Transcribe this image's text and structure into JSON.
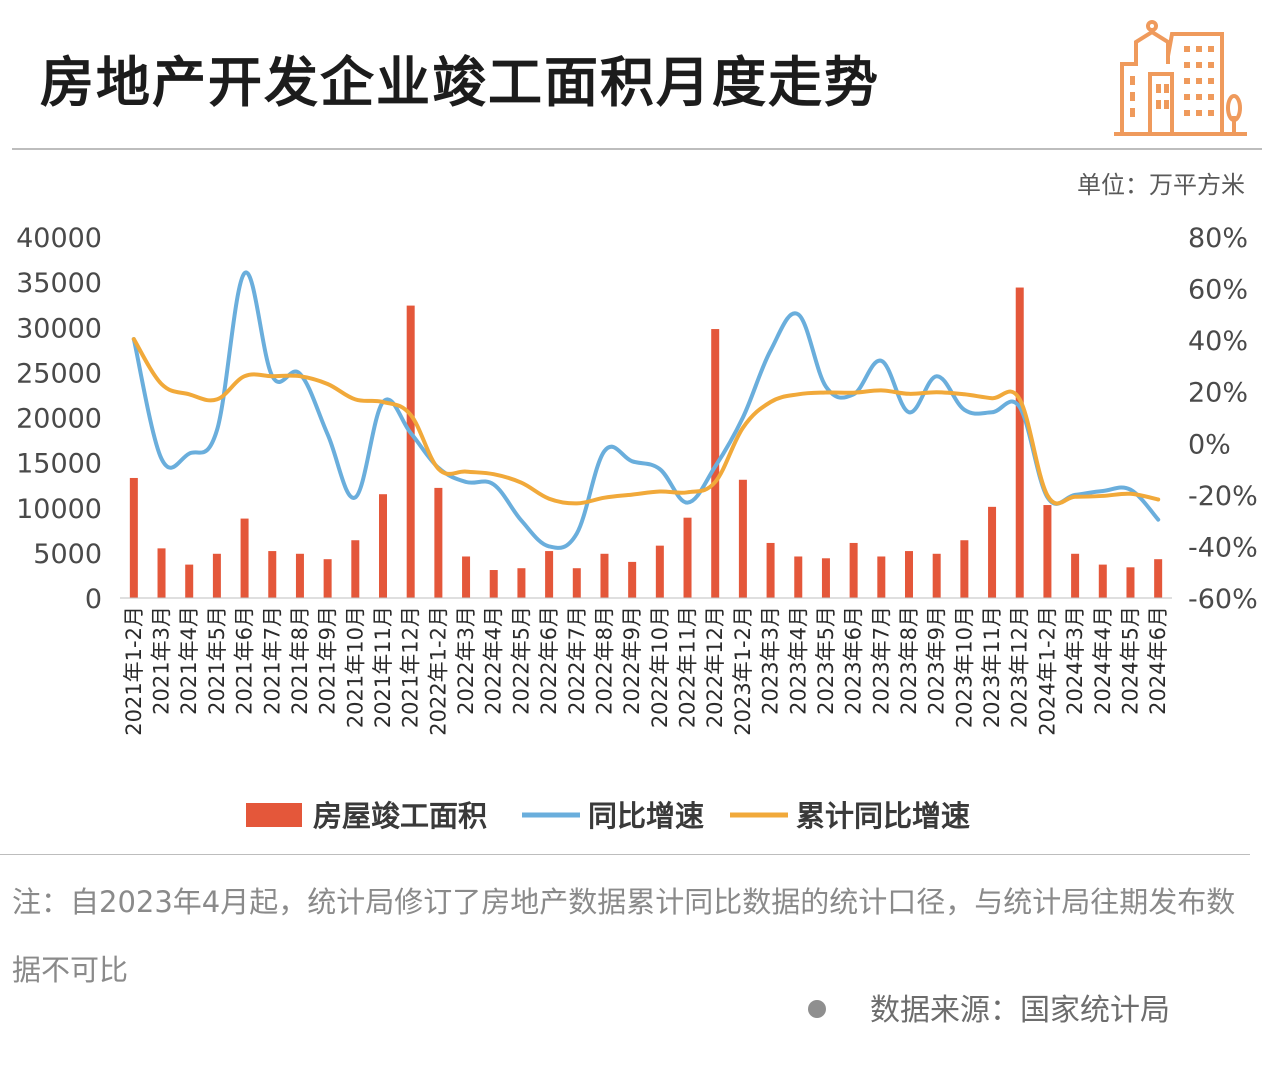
{
  "title": "房地产开发企业竣工面积月度走势",
  "unit": "单位：万平方米",
  "note": "注：自2023年4月起，统计局修订了房地产数据累计同比数据的统计口径，与统计局往期发布数据不可比",
  "source": "数据来源：国家统计局",
  "logo_icon": "buildings-icon",
  "colors": {
    "bar": "#e4573a",
    "yoy": "#6aaedc",
    "cum": "#f1a93a",
    "logo": "#ef9a5c"
  },
  "chart_data": {
    "type": "bar",
    "categories": [
      "2021年1-2月",
      "2021年3月",
      "2021年4月",
      "2021年5月",
      "2021年6月",
      "2021年7月",
      "2021年8月",
      "2021年9月",
      "2021年10月",
      "2021年11月",
      "2021年12月",
      "2022年1-2月",
      "2022年3月",
      "2022年4月",
      "2022年5月",
      "2022年6月",
      "2022年7月",
      "2022年8月",
      "2022年9月",
      "2022年10月",
      "2022年11月",
      "2022年12月",
      "2023年1-2月",
      "2023年3月",
      "2023年4月",
      "2023年5月",
      "2023年6月",
      "2023年7月",
      "2023年8月",
      "2023年9月",
      "2023年10月",
      "2023年11月",
      "2023年12月",
      "2024年1-2月",
      "2024年3月",
      "2024年4月",
      "2024年5月",
      "2024年6月"
    ],
    "y_left": {
      "ticks": [
        "0",
        "5000",
        "10000",
        "15000",
        "20000",
        "25000",
        "30000",
        "35000",
        "40000"
      ],
      "min": 0,
      "max": 40000
    },
    "y_right": {
      "ticks": [
        "-60%",
        "-40%",
        "-20%",
        "0%",
        "20%",
        "40%",
        "60%",
        "80%"
      ],
      "min": -60,
      "max": 80
    },
    "series": [
      {
        "name": "房屋竣工面积",
        "type": "bar",
        "axis": "left",
        "values": [
          13300,
          5500,
          3700,
          4900,
          8800,
          5200,
          4900,
          4300,
          6400,
          11500,
          32400,
          12200,
          4600,
          3100,
          3300,
          5200,
          3300,
          4900,
          4000,
          5800,
          8900,
          29800,
          13100,
          6100,
          4600,
          4400,
          6100,
          4600,
          5200,
          4900,
          6400,
          10100,
          34400,
          10300,
          4900,
          3700,
          3400,
          4300
        ]
      },
      {
        "name": "同比增速",
        "type": "line",
        "axis": "right",
        "smooth": true,
        "values": [
          40.4,
          -6,
          -4,
          5,
          66,
          26,
          27,
          3.5,
          -21,
          16,
          4,
          -9.5,
          -15,
          -16,
          -30,
          -40,
          -35,
          -3,
          -7,
          -10,
          -23,
          -9,
          10,
          36,
          50,
          22,
          19,
          32,
          12,
          26,
          13,
          12,
          14,
          -20.9,
          -20,
          -18.5,
          -18,
          -29.6
        ]
      },
      {
        "name": "累计同比增速",
        "type": "line",
        "axis": "right",
        "smooth": true,
        "values": [
          40.4,
          23,
          19,
          17,
          26,
          26,
          26,
          23,
          17,
          16,
          11,
          -9.9,
          -11,
          -12,
          -15.3,
          -21.5,
          -23.3,
          -21.1,
          -19.9,
          -18.7,
          -19,
          -15,
          6,
          16,
          19,
          19.7,
          19.6,
          20.5,
          19.2,
          19.8,
          19,
          17.5,
          17,
          -20.2,
          -20.7,
          -20.4,
          -19.6,
          -21.8
        ]
      }
    ],
    "legend_position": "bottom"
  }
}
